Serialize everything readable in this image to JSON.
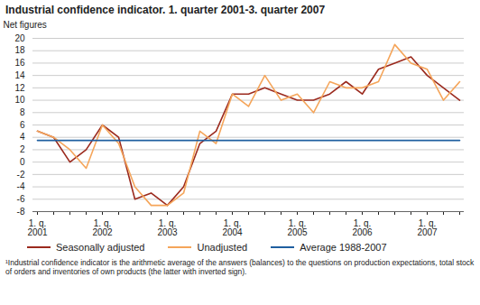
{
  "chart_data": {
    "type": "line",
    "title": "Industrial confidence indicator. 1. quarter 2001-3. quarter 2007",
    "y_label": "Net figures",
    "categories": [
      "1. q.\n2001",
      null,
      null,
      null,
      "1. q.\n2002",
      null,
      null,
      null,
      "1. q.\n2003",
      null,
      null,
      null,
      "1. q.\n2004",
      null,
      null,
      null,
      "1. q.\n2005",
      null,
      null,
      null,
      "1. q.\n2006",
      null,
      null,
      null,
      "1. q.\n2007",
      null,
      null
    ],
    "series": [
      {
        "name": "Seasonally adjusted",
        "color": "#9b2a1e",
        "values": [
          5,
          4,
          0,
          2,
          6,
          4,
          -6,
          -5,
          -7,
          -4,
          3,
          5,
          11,
          11,
          12,
          11,
          10,
          10,
          11,
          13,
          11,
          15,
          16,
          17,
          14,
          12,
          10
        ]
      },
      {
        "name": "Unadjusted",
        "color": "#f5a55a",
        "values": [
          5,
          4,
          2,
          -1,
          6,
          3,
          -4,
          -7,
          -7,
          -5,
          5,
          3,
          11,
          9,
          14,
          10,
          11,
          8,
          13,
          12,
          12,
          13,
          19,
          16,
          15,
          10,
          13
        ]
      },
      {
        "name": "Average 1988-2007",
        "color": "#1f5fa0",
        "values": [
          3.5,
          3.5,
          3.5,
          3.5,
          3.5,
          3.5,
          3.5,
          3.5,
          3.5,
          3.5,
          3.5,
          3.5,
          3.5,
          3.5,
          3.5,
          3.5,
          3.5,
          3.5,
          3.5,
          3.5,
          3.5,
          3.5,
          3.5,
          3.5,
          3.5,
          3.5,
          3.5
        ]
      }
    ],
    "ylim": [
      -8,
      20
    ],
    "yticks": [
      -8,
      -6,
      -4,
      -2,
      0,
      2,
      4,
      6,
      8,
      10,
      12,
      14,
      16,
      18,
      20
    ],
    "grid": true,
    "legend": "bottom",
    "footnote": "¹Industrial confidence indicator is the arithmetic average of the answers (balances) to the questions on production expectations, total stock of orders and inventories of own products (the latter with inverted sign)."
  }
}
